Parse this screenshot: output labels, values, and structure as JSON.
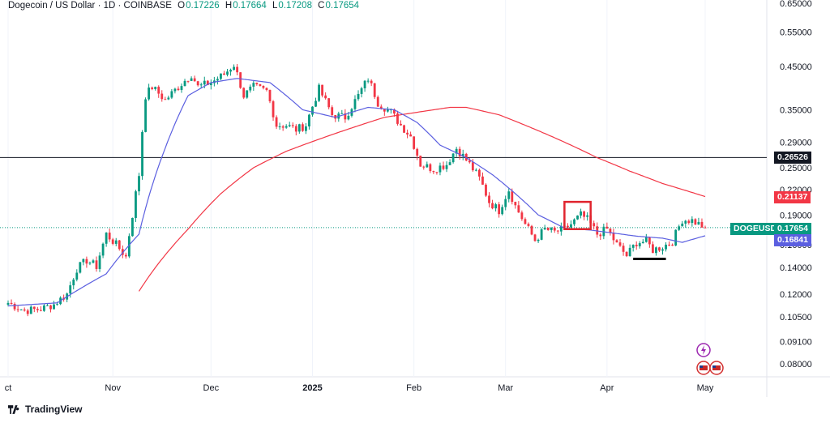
{
  "header": {
    "symbol": "Dogecoin / US Dollar · 1D · COINBASE",
    "o_label": "O",
    "o": "0.17226",
    "h_label": "H",
    "h": "0.17664",
    "l_label": "L",
    "l": "0.17208",
    "c_label": "C",
    "c": "0.17654"
  },
  "footer": {
    "brand": "TradingView"
  },
  "colors": {
    "up": "#089981",
    "down": "#f23645",
    "ma_fast": "#5b5fe0",
    "ma_slow": "#f23645",
    "hline": "#131722"
  },
  "chart_data": {
    "type": "candlestick",
    "symbol_tag": "DOGEUSD",
    "price_tags": {
      "hline": "0.26526",
      "ma_slow": "0.21137",
      "last": "0.17654",
      "ma_fast": "0.16841"
    },
    "y_scale": "log",
    "y_ticks": [
      "0.65000",
      "0.55000",
      "0.45000",
      "0.35000",
      "0.29000",
      "0.25000",
      "0.22000",
      "0.19000",
      "0.16000",
      "0.14000",
      "0.12000",
      "0.10500",
      "0.09100",
      "0.08000"
    ],
    "x_ticks": [
      {
        "label": "ct",
        "day": 0
      },
      {
        "label": "Nov",
        "day": 32
      },
      {
        "label": "Dec",
        "day": 62
      },
      {
        "label": "2025",
        "day": 93
      },
      {
        "label": "Feb",
        "day": 124
      },
      {
        "label": "Mar",
        "day": 152
      },
      {
        "label": "Apr",
        "day": 183
      },
      {
        "label": "May",
        "day": 213
      }
    ],
    "last_day": 213,
    "horizontal_line": 0.26526,
    "keypoints": [
      [
        0,
        0.114
      ],
      [
        5,
        0.109
      ],
      [
        10,
        0.11
      ],
      [
        14,
        0.113
      ],
      [
        18,
        0.12
      ],
      [
        21,
        0.139
      ],
      [
        24,
        0.146
      ],
      [
        27,
        0.141
      ],
      [
        30,
        0.17
      ],
      [
        33,
        0.16
      ],
      [
        36,
        0.149
      ],
      [
        38,
        0.19
      ],
      [
        40,
        0.24
      ],
      [
        42,
        0.38
      ],
      [
        44,
        0.4
      ],
      [
        48,
        0.37
      ],
      [
        52,
        0.4
      ],
      [
        56,
        0.43
      ],
      [
        58,
        0.4
      ],
      [
        62,
        0.41
      ],
      [
        66,
        0.43
      ],
      [
        69,
        0.455
      ],
      [
        72,
        0.38
      ],
      [
        75,
        0.4
      ],
      [
        79,
        0.39
      ],
      [
        82,
        0.32
      ],
      [
        85,
        0.32
      ],
      [
        88,
        0.312
      ],
      [
        91,
        0.32
      ],
      [
        95,
        0.395
      ],
      [
        99,
        0.34
      ],
      [
        103,
        0.335
      ],
      [
        107,
        0.38
      ],
      [
        110,
        0.42
      ],
      [
        113,
        0.365
      ],
      [
        117,
        0.345
      ],
      [
        120,
        0.32
      ],
      [
        123,
        0.3
      ],
      [
        126,
        0.255
      ],
      [
        130,
        0.248
      ],
      [
        134,
        0.255
      ],
      [
        137,
        0.28
      ],
      [
        141,
        0.255
      ],
      [
        144,
        0.235
      ],
      [
        147,
        0.205
      ],
      [
        150,
        0.195
      ],
      [
        153,
        0.22
      ],
      [
        155,
        0.2
      ],
      [
        158,
        0.18
      ],
      [
        161,
        0.164
      ],
      [
        164,
        0.175
      ],
      [
        167,
        0.172
      ],
      [
        170,
        0.175
      ],
      [
        172,
        0.18
      ],
      [
        175,
        0.19
      ],
      [
        177,
        0.185
      ],
      [
        180,
        0.17
      ],
      [
        183,
        0.175
      ],
      [
        186,
        0.16
      ],
      [
        189,
        0.15
      ],
      [
        192,
        0.162
      ],
      [
        195,
        0.163
      ],
      [
        197,
        0.155
      ],
      [
        200,
        0.158
      ],
      [
        203,
        0.163
      ],
      [
        206,
        0.185
      ],
      [
        209,
        0.184
      ],
      [
        213,
        0.1765
      ]
    ],
    "ma_fast": [
      [
        0,
        0.112
      ],
      [
        15,
        0.114
      ],
      [
        30,
        0.135
      ],
      [
        40,
        0.17
      ],
      [
        48,
        0.28
      ],
      [
        55,
        0.38
      ],
      [
        62,
        0.41
      ],
      [
        70,
        0.42
      ],
      [
        80,
        0.41
      ],
      [
        90,
        0.35
      ],
      [
        100,
        0.335
      ],
      [
        110,
        0.355
      ],
      [
        118,
        0.35
      ],
      [
        125,
        0.325
      ],
      [
        132,
        0.285
      ],
      [
        140,
        0.265
      ],
      [
        148,
        0.24
      ],
      [
        155,
        0.215
      ],
      [
        162,
        0.19
      ],
      [
        170,
        0.176
      ],
      [
        178,
        0.174
      ],
      [
        185,
        0.171
      ],
      [
        192,
        0.168
      ],
      [
        200,
        0.166
      ],
      [
        206,
        0.162
      ],
      [
        213,
        0.1684
      ]
    ],
    "ma_slow": [
      [
        40,
        0.122
      ],
      [
        45,
        0.14
      ],
      [
        55,
        0.175
      ],
      [
        65,
        0.215
      ],
      [
        75,
        0.25
      ],
      [
        85,
        0.275
      ],
      [
        95,
        0.295
      ],
      [
        105,
        0.315
      ],
      [
        115,
        0.335
      ],
      [
        125,
        0.345
      ],
      [
        135,
        0.355
      ],
      [
        140,
        0.355
      ],
      [
        150,
        0.34
      ],
      [
        160,
        0.315
      ],
      [
        170,
        0.29
      ],
      [
        180,
        0.265
      ],
      [
        190,
        0.245
      ],
      [
        200,
        0.228
      ],
      [
        213,
        0.2114
      ]
    ],
    "annotations": {
      "box_day_range": [
        170,
        178
      ],
      "box_price_range": [
        0.175,
        0.205
      ],
      "bar_day_range": [
        191,
        201
      ],
      "bar_price": 0.15
    }
  }
}
